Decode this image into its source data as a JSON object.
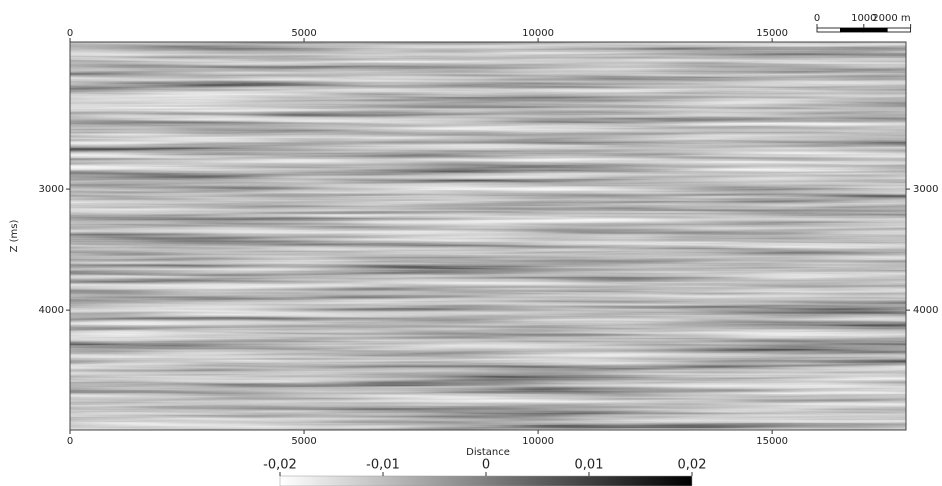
{
  "chart_data": {
    "type": "seismic-section",
    "xlabel": "Distance",
    "ylabel": "Z (ms)",
    "xlim": [
      0,
      17860
    ],
    "xticks": [
      0,
      5000,
      10000,
      15000
    ],
    "ylim": [
      1785,
      4990
    ],
    "yticks": [
      3000,
      4000
    ],
    "y_inverted": true,
    "colorbar": {
      "lim": [
        -0.02,
        0.02
      ],
      "colors": [
        "#ffffff",
        "#000000"
      ],
      "ticks": [
        {
          "value": -0.02,
          "label": "-0,02"
        },
        {
          "value": -0.01,
          "label": "-0,01"
        },
        0,
        {
          "value": 0.01,
          "label": "0,01"
        },
        {
          "value": 0.02,
          "label": "0,02"
        }
      ]
    },
    "scale_bar": {
      "ticks": [
        0,
        1000,
        {
          "value": 2000,
          "label": "2000 m"
        }
      ]
    }
  }
}
